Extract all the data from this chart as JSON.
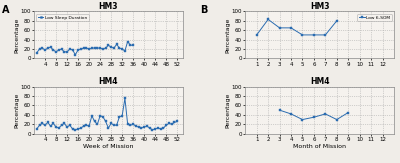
{
  "panel_A_title1": "HM3",
  "panel_A_title2": "HM4",
  "panel_B_title1": "HM3",
  "panel_B_title2": "HM4",
  "panel_A_label": "A",
  "panel_B_label": "B",
  "xlabel_A": "Week of Mission",
  "xlabel_B": "Month of Mission",
  "ylabel": "Percentage",
  "legend_A": "Low Sleep Duration",
  "legend_B": "Low 6-SOM",
  "line_color": "#2B6CB0",
  "marker": "s",
  "markersize": 1.5,
  "linewidth": 0.7,
  "bg_color": "#F0EDE8",
  "plot_bg": "#F5F2EE",
  "hm3_weeks": [
    1,
    2,
    3,
    4,
    5,
    6,
    7,
    8,
    9,
    10,
    11,
    12,
    13,
    14,
    15,
    16,
    17,
    18,
    19,
    20,
    21,
    22,
    23,
    24,
    25,
    26,
    27,
    28,
    29,
    30,
    31,
    32,
    33,
    34,
    35,
    36
  ],
  "hm3_sleep": [
    12,
    20,
    22,
    18,
    22,
    24,
    18,
    14,
    18,
    20,
    14,
    14,
    20,
    18,
    8,
    18,
    20,
    22,
    22,
    20,
    22,
    22,
    22,
    22,
    20,
    22,
    28,
    24,
    22,
    30,
    22,
    20,
    16,
    36,
    28,
    28
  ],
  "hm4_weeks": [
    1,
    2,
    3,
    4,
    5,
    6,
    7,
    8,
    9,
    10,
    11,
    12,
    13,
    14,
    15,
    16,
    17,
    18,
    19,
    20,
    21,
    22,
    23,
    24,
    25,
    26,
    27,
    28,
    29,
    30,
    31,
    32,
    33,
    34,
    35,
    36,
    37,
    38,
    39,
    40,
    41,
    42,
    43,
    44,
    45,
    46,
    47,
    48,
    49,
    50,
    51,
    52
  ],
  "hm4_sleep": [
    10,
    18,
    22,
    18,
    24,
    16,
    22,
    14,
    12,
    18,
    22,
    14,
    18,
    10,
    8,
    10,
    12,
    16,
    18,
    16,
    38,
    26,
    20,
    38,
    36,
    26,
    12,
    22,
    18,
    18,
    36,
    38,
    75,
    20,
    18,
    20,
    16,
    14,
    12,
    14,
    16,
    12,
    8,
    10,
    12,
    10,
    12,
    18,
    22,
    20,
    24,
    26
  ],
  "hm3_months": [
    1,
    2,
    3,
    4,
    5,
    6,
    7,
    8
  ],
  "hm3_6som": [
    50,
    83,
    65,
    65,
    50,
    50,
    50,
    80
  ],
  "hm4_months": [
    3,
    4,
    5,
    6,
    7,
    8,
    9
  ],
  "hm4_6som": [
    50,
    42,
    30,
    35,
    42,
    30,
    45
  ],
  "ylim": [
    0,
    100
  ],
  "yticks": [
    0,
    20,
    40,
    60,
    80,
    100
  ],
  "xticks_A": [
    4,
    8,
    12,
    16,
    20,
    24,
    28,
    32,
    36,
    40,
    44,
    48,
    52
  ],
  "xticks_B": [
    1,
    2,
    3,
    4,
    5,
    6,
    7,
    8,
    9,
    10,
    11,
    12
  ],
  "xlim_A": [
    0,
    54
  ],
  "xlim_B": [
    0,
    13
  ]
}
